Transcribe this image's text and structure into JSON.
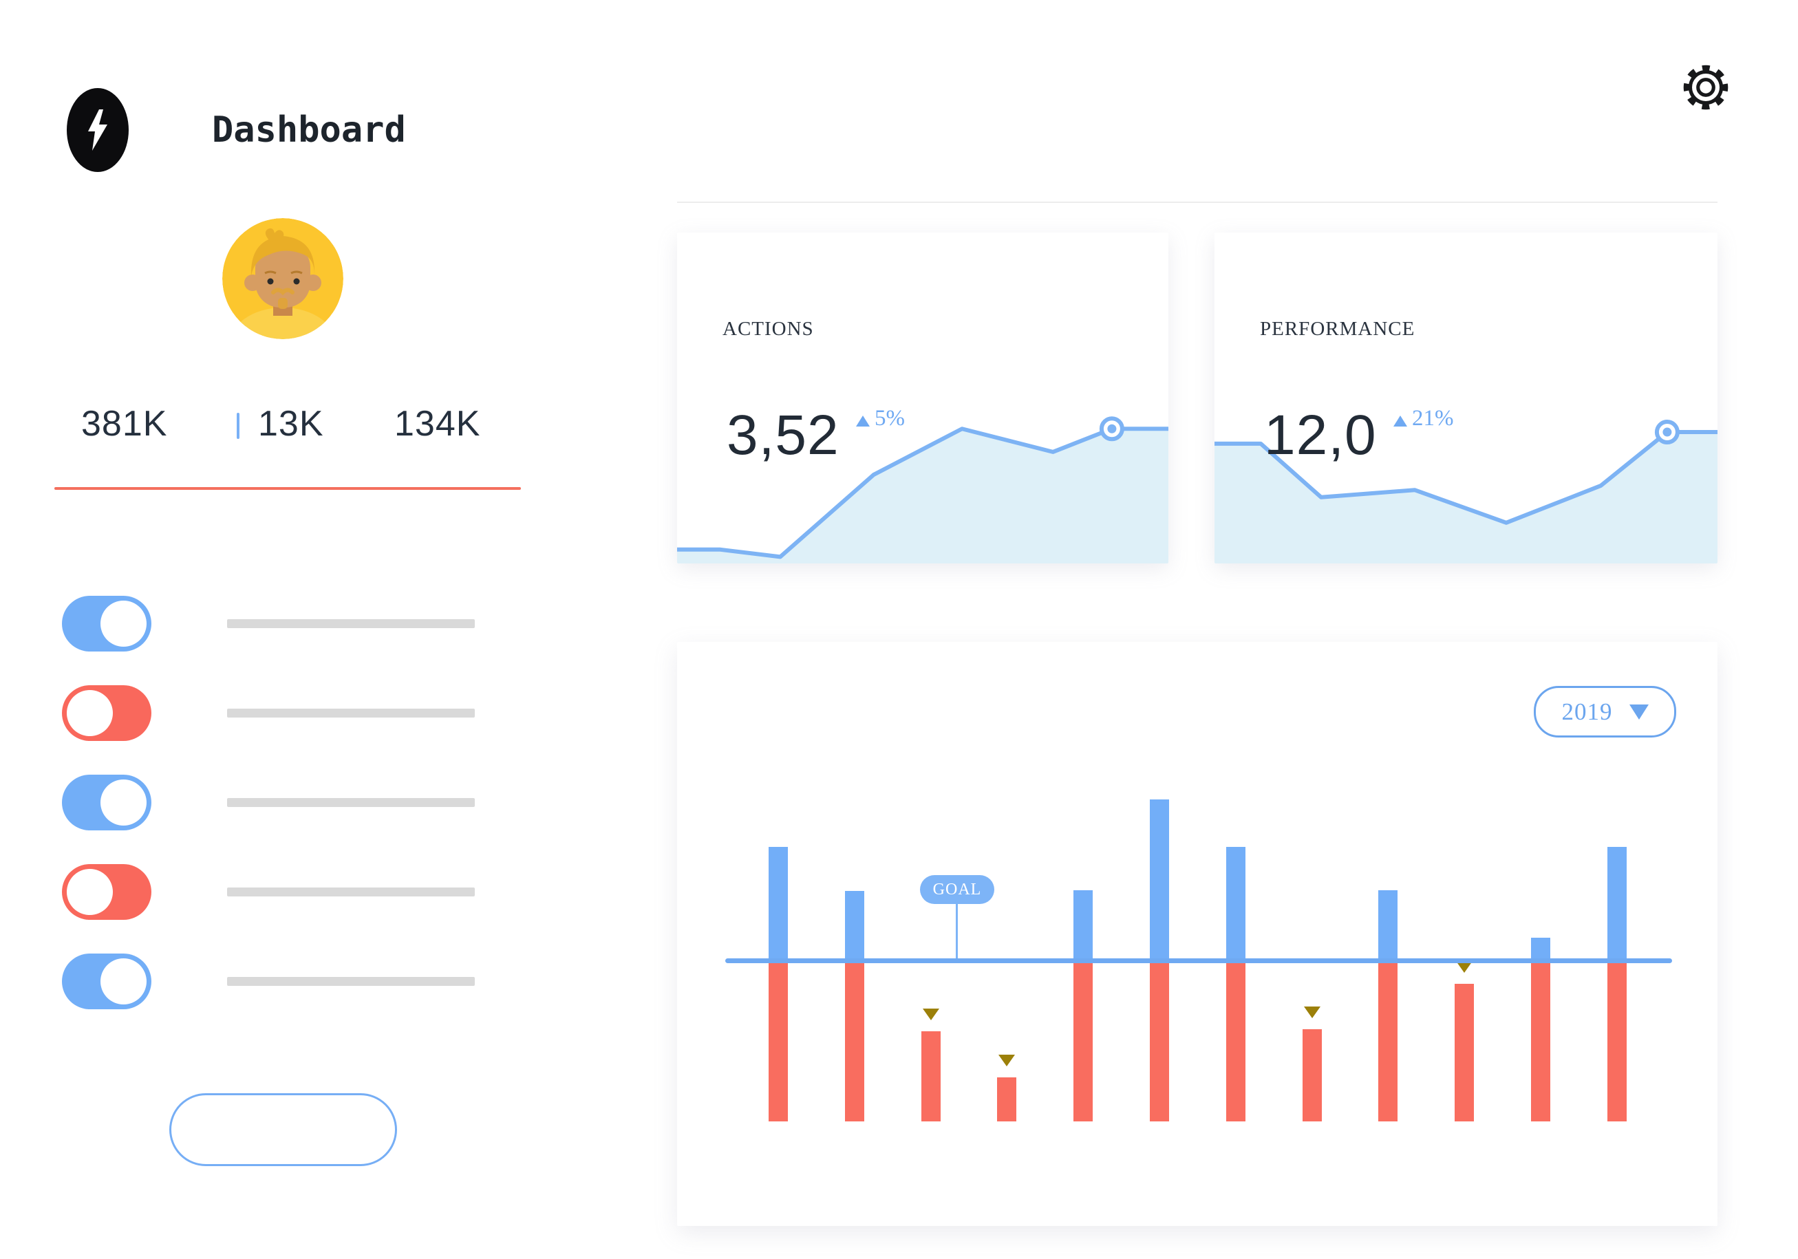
{
  "header": {
    "title": "Dashboard",
    "logo_icon": "lightning-icon",
    "settings_icon": "gear-icon"
  },
  "sidebar": {
    "avatar_icon": "user-avatar",
    "stats": {
      "followers": "381K",
      "middle": "13K",
      "right": "134K"
    },
    "toggles": [
      {
        "state": "on"
      },
      {
        "state": "off"
      },
      {
        "state": "on"
      },
      {
        "state": "off"
      },
      {
        "state": "on"
      }
    ],
    "action_button_label": ""
  },
  "cards": {
    "actions": {
      "label": "ACTIONS",
      "value": "3,52",
      "delta": "5%",
      "delta_direction": "up"
    },
    "performance": {
      "label": "PERFORMANCE",
      "value": "12,0",
      "delta": "21%",
      "delta_direction": "up"
    }
  },
  "bar_panel": {
    "year_selector": "2019",
    "goal_label": "GOAL",
    "dropdown_icon": "chevron-down-icon"
  },
  "colors": {
    "bar_blue": "#72aef8",
    "bar_red": "#f96d5f",
    "goal_line_blue": "#6fa9f2",
    "area_line_blue": "#7db3f4",
    "area_fill": "#def0f8",
    "marker_olive": "#9c8009",
    "underline_red": "#f4705e",
    "toggle_on_blue": "#72aef7",
    "toggle_off_red": "#f9685c",
    "pill_blue": "#7db4f7",
    "dropdown_blue": "#6ba5ee",
    "dark_text": "#232d38",
    "gray_placeholder": "#d9d9d9"
  },
  "chart_data": [
    {
      "id": "actions-trend",
      "type": "area",
      "title": "ACTIONS",
      "value": "3,52",
      "delta": "5%",
      "legend_position": "none",
      "grid": false,
      "points_pct": [
        [
          0,
          4.2
        ],
        [
          8.8,
          4.2
        ],
        [
          21,
          2.0
        ],
        [
          40,
          26.8
        ],
        [
          58,
          40.7
        ],
        [
          76.5,
          33.7
        ],
        [
          88.5,
          40.7
        ],
        [
          100,
          40.7
        ]
      ],
      "marker_index": 6
    },
    {
      "id": "performance-trend",
      "type": "area",
      "title": "PERFORMANCE",
      "value": "12,0",
      "delta": "21%",
      "legend_position": "none",
      "grid": false,
      "points_pct": [
        [
          0,
          36.2
        ],
        [
          9.2,
          36.2
        ],
        [
          21.2,
          20.0
        ],
        [
          39.8,
          22.2
        ],
        [
          58,
          12.3
        ],
        [
          76.8,
          23.5
        ],
        [
          90,
          39.7
        ],
        [
          100,
          39.7
        ]
      ],
      "marker_index": 6
    },
    {
      "id": "yearly-goal-bars",
      "type": "bar",
      "year": "2019",
      "goal_label": "GOAL",
      "units": "px relative to goal baseline",
      "grid": false,
      "columns": [
        {
          "above": 165,
          "below_gap": 0,
          "below": 234,
          "marker": false
        },
        {
          "above": 101,
          "below_gap": 0,
          "below": 234,
          "marker": false
        },
        {
          "above": 0,
          "below_gap": 103,
          "below": 131,
          "marker": true
        },
        {
          "above": 0,
          "below_gap": 170,
          "below": 64,
          "marker": true
        },
        {
          "above": 102,
          "below_gap": 0,
          "below": 234,
          "marker": false
        },
        {
          "above": 234,
          "below_gap": 0,
          "below": 234,
          "marker": false
        },
        {
          "above": 165,
          "below_gap": 0,
          "below": 234,
          "marker": false
        },
        {
          "above": 0,
          "below_gap": 100,
          "below": 134,
          "marker": true
        },
        {
          "above": 102,
          "below_gap": 0,
          "below": 234,
          "marker": false
        },
        {
          "above": 0,
          "below_gap": 34,
          "below": 200,
          "marker": true
        },
        {
          "above": 33,
          "below_gap": 0,
          "below": 234,
          "marker": false
        },
        {
          "above": 165,
          "below_gap": 0,
          "below": 234,
          "marker": false
        }
      ]
    }
  ]
}
